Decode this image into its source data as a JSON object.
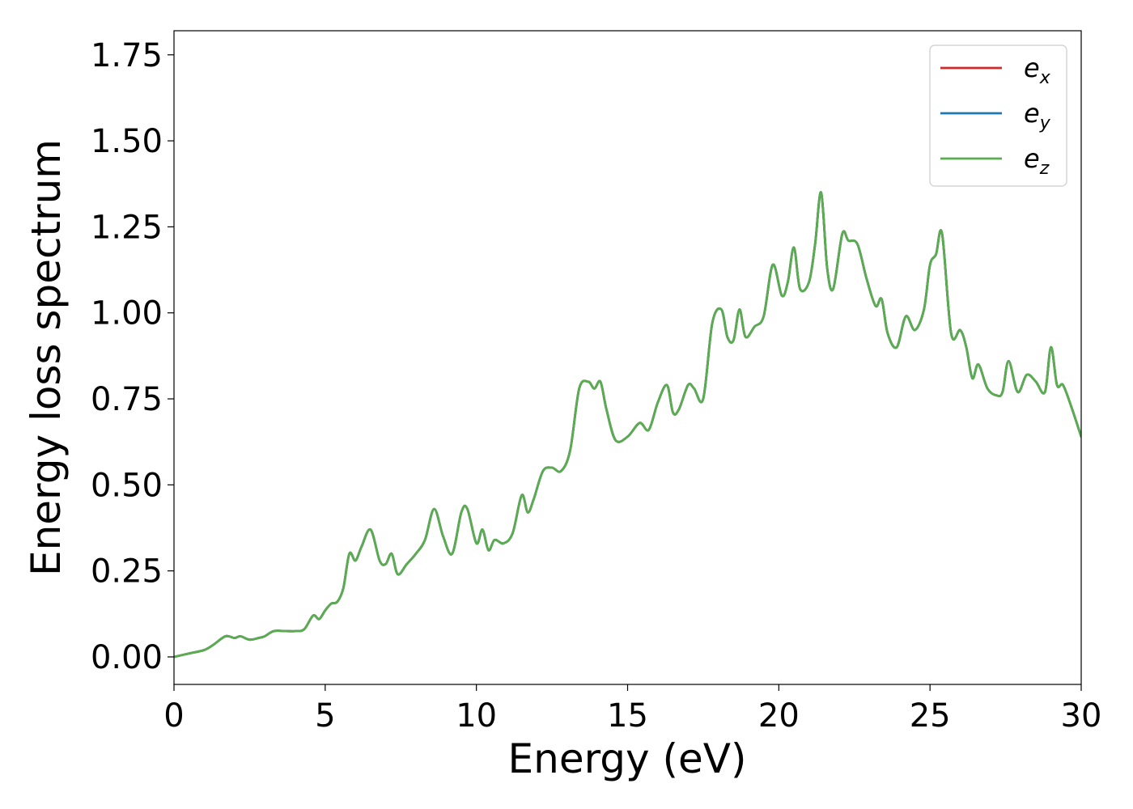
{
  "chart_data": {
    "type": "line",
    "title": "",
    "xlabel": "Energy (eV)",
    "ylabel": "Energy loss spectrum",
    "xlim": [
      0,
      30
    ],
    "ylim": [
      -0.08,
      1.82
    ],
    "xticks": [
      "0",
      "5",
      "10",
      "15",
      "20",
      "25",
      "30"
    ],
    "yticks": [
      "0.00",
      "0.25",
      "0.50",
      "0.75",
      "1.00",
      "1.25",
      "1.50",
      "1.75"
    ],
    "grid": false,
    "legend_position": "top-right",
    "x": [
      0,
      0.5,
      1.0,
      1.3,
      1.7,
      2.0,
      2.2,
      2.5,
      2.8,
      3.0,
      3.3,
      3.7,
      4.0,
      4.3,
      4.6,
      4.8,
      5.0,
      5.2,
      5.4,
      5.6,
      5.8,
      6.0,
      6.2,
      6.5,
      6.8,
      7.0,
      7.2,
      7.4,
      7.7,
      8.0,
      8.3,
      8.6,
      8.9,
      9.2,
      9.5,
      9.7,
      10.0,
      10.2,
      10.4,
      10.6,
      10.9,
      11.2,
      11.5,
      11.7,
      11.9,
      12.2,
      12.5,
      12.8,
      13.1,
      13.4,
      13.7,
      13.9,
      14.1,
      14.3,
      14.6,
      15.0,
      15.4,
      15.7,
      16.0,
      16.3,
      16.5,
      16.7,
      17.0,
      17.2,
      17.5,
      17.8,
      18.1,
      18.3,
      18.5,
      18.7,
      18.9,
      19.2,
      19.5,
      19.8,
      20.1,
      20.3,
      20.5,
      20.7,
      21.0,
      21.2,
      21.4,
      21.6,
      21.8,
      22.1,
      22.3,
      22.6,
      22.9,
      23.2,
      23.4,
      23.6,
      23.9,
      24.2,
      24.5,
      24.8,
      25.0,
      25.2,
      25.4,
      25.7,
      26.0,
      26.2,
      26.4,
      26.6,
      26.9,
      27.2,
      27.4,
      27.6,
      27.9,
      28.2,
      28.5,
      28.8,
      29.0,
      29.2,
      29.4,
      29.7,
      30.0
    ],
    "series": [
      {
        "name": "e_x",
        "label_base": "e",
        "label_sub": "x",
        "color": "#d62728",
        "values": [
          0.0,
          0.01,
          0.02,
          0.035,
          0.06,
          0.055,
          0.06,
          0.05,
          0.055,
          0.06,
          0.075,
          0.075,
          0.075,
          0.08,
          0.12,
          0.11,
          0.135,
          0.155,
          0.16,
          0.2,
          0.3,
          0.28,
          0.32,
          0.37,
          0.28,
          0.27,
          0.3,
          0.24,
          0.27,
          0.3,
          0.34,
          0.43,
          0.35,
          0.3,
          0.42,
          0.43,
          0.33,
          0.37,
          0.31,
          0.34,
          0.33,
          0.36,
          0.47,
          0.42,
          0.46,
          0.54,
          0.55,
          0.54,
          0.6,
          0.78,
          0.8,
          0.78,
          0.8,
          0.72,
          0.63,
          0.64,
          0.68,
          0.66,
          0.74,
          0.79,
          0.71,
          0.72,
          0.79,
          0.78,
          0.75,
          0.97,
          1.01,
          0.93,
          0.92,
          1.01,
          0.93,
          0.96,
          0.99,
          1.14,
          1.05,
          1.09,
          1.19,
          1.07,
          1.09,
          1.2,
          1.35,
          1.13,
          1.07,
          1.23,
          1.21,
          1.2,
          1.1,
          1.02,
          1.04,
          0.94,
          0.9,
          0.99,
          0.95,
          1.01,
          1.14,
          1.17,
          1.23,
          0.94,
          0.95,
          0.9,
          0.81,
          0.85,
          0.78,
          0.76,
          0.77,
          0.86,
          0.77,
          0.82,
          0.8,
          0.77,
          0.9,
          0.79,
          0.79,
          0.72,
          0.64
        ]
      },
      {
        "name": "e_y",
        "label_base": "e",
        "label_sub": "y",
        "color": "#1f77b4",
        "values": [
          0.0,
          0.01,
          0.02,
          0.035,
          0.06,
          0.055,
          0.06,
          0.05,
          0.055,
          0.06,
          0.075,
          0.075,
          0.075,
          0.08,
          0.12,
          0.11,
          0.135,
          0.155,
          0.16,
          0.2,
          0.3,
          0.28,
          0.32,
          0.37,
          0.28,
          0.27,
          0.3,
          0.24,
          0.27,
          0.3,
          0.34,
          0.43,
          0.35,
          0.3,
          0.42,
          0.43,
          0.33,
          0.37,
          0.31,
          0.34,
          0.33,
          0.36,
          0.47,
          0.42,
          0.46,
          0.54,
          0.55,
          0.54,
          0.6,
          0.78,
          0.8,
          0.78,
          0.8,
          0.72,
          0.63,
          0.64,
          0.68,
          0.66,
          0.74,
          0.79,
          0.71,
          0.72,
          0.79,
          0.78,
          0.75,
          0.97,
          1.01,
          0.93,
          0.92,
          1.01,
          0.93,
          0.96,
          0.99,
          1.14,
          1.05,
          1.09,
          1.19,
          1.07,
          1.09,
          1.2,
          1.35,
          1.13,
          1.07,
          1.23,
          1.21,
          1.2,
          1.1,
          1.02,
          1.04,
          0.94,
          0.9,
          0.99,
          0.95,
          1.01,
          1.14,
          1.17,
          1.23,
          0.94,
          0.95,
          0.9,
          0.81,
          0.85,
          0.78,
          0.76,
          0.77,
          0.86,
          0.77,
          0.82,
          0.8,
          0.77,
          0.9,
          0.79,
          0.79,
          0.72,
          0.64
        ]
      },
      {
        "name": "e_z",
        "label_base": "e",
        "label_sub": "z",
        "color": "#5aad4f",
        "values": [
          0.0,
          0.01,
          0.02,
          0.035,
          0.06,
          0.055,
          0.06,
          0.05,
          0.055,
          0.06,
          0.075,
          0.075,
          0.075,
          0.08,
          0.12,
          0.11,
          0.135,
          0.155,
          0.16,
          0.2,
          0.3,
          0.28,
          0.32,
          0.37,
          0.28,
          0.27,
          0.3,
          0.24,
          0.27,
          0.3,
          0.34,
          0.43,
          0.35,
          0.3,
          0.42,
          0.43,
          0.33,
          0.37,
          0.31,
          0.34,
          0.33,
          0.36,
          0.47,
          0.42,
          0.46,
          0.54,
          0.55,
          0.54,
          0.6,
          0.78,
          0.8,
          0.78,
          0.8,
          0.72,
          0.63,
          0.64,
          0.68,
          0.66,
          0.74,
          0.79,
          0.71,
          0.72,
          0.79,
          0.78,
          0.75,
          0.97,
          1.01,
          0.93,
          0.92,
          1.01,
          0.93,
          0.96,
          0.99,
          1.14,
          1.05,
          1.09,
          1.19,
          1.07,
          1.09,
          1.2,
          1.35,
          1.13,
          1.07,
          1.23,
          1.21,
          1.2,
          1.1,
          1.02,
          1.04,
          0.94,
          0.9,
          0.99,
          0.95,
          1.01,
          1.14,
          1.17,
          1.23,
          0.94,
          0.95,
          0.9,
          0.81,
          0.85,
          0.78,
          0.76,
          0.77,
          0.86,
          0.77,
          0.82,
          0.8,
          0.77,
          0.9,
          0.79,
          0.79,
          0.72,
          0.64
        ]
      }
    ]
  }
}
